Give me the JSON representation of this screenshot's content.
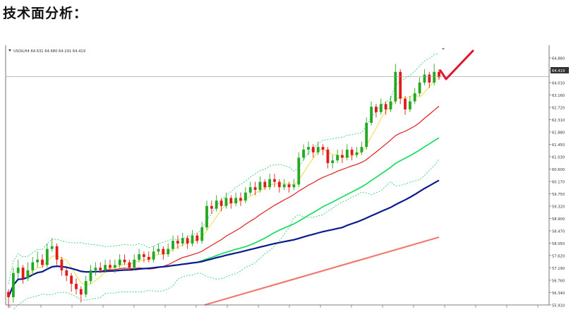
{
  "page": {
    "title": "技术面分析："
  },
  "chart_data": {
    "type": "candlestick",
    "symbol_info": "USOILH4  64.631 64.680 64.291 64.419",
    "current_price": "64.419",
    "ylim": [
      55.91,
      65.49
    ],
    "y_ticks": [
      "64.860",
      "64.419",
      "64.010",
      "63.160",
      "62.720",
      "62.310",
      "61.880",
      "61.450",
      "61.030",
      "60.600",
      "60.170",
      "59.750",
      "59.320",
      "58.900",
      "58.470",
      "58.050",
      "57.620",
      "57.190",
      "56.760",
      "56.340",
      "55.910"
    ],
    "grid": false,
    "colors": {
      "up": "#22a822",
      "down": "#e01b1b",
      "ma_fast": "#f0dc46",
      "ma_red": "#e01b1b",
      "ma_green": "#22dd66",
      "ma_navy": "#0b1a8c",
      "ma_salmon": "#f07a6e",
      "bands": "#22cc66",
      "arrow": "#e0182f"
    },
    "candles": [
      [
        56.4,
        56.2,
        56.5,
        55.8
      ],
      [
        56.2,
        57.1,
        57.3,
        56.0
      ],
      [
        57.1,
        57.3,
        57.6,
        56.9
      ],
      [
        57.3,
        56.9,
        57.4,
        56.7
      ],
      [
        56.9,
        57.2,
        57.5,
        56.8
      ],
      [
        57.2,
        57.5,
        57.7,
        57.0
      ],
      [
        57.5,
        57.6,
        57.9,
        57.3
      ],
      [
        57.6,
        57.4,
        57.8,
        57.3
      ],
      [
        57.4,
        58.0,
        58.2,
        57.3
      ],
      [
        58.0,
        58.1,
        58.4,
        57.9
      ],
      [
        58.1,
        57.6,
        58.2,
        57.4
      ],
      [
        57.6,
        57.2,
        57.7,
        57.0
      ],
      [
        57.2,
        57.0,
        57.3,
        56.8
      ],
      [
        57.0,
        56.7,
        57.1,
        56.4
      ],
      [
        56.7,
        56.5,
        56.9,
        56.3
      ],
      [
        56.5,
        56.3,
        56.6,
        56.0
      ],
      [
        56.3,
        56.8,
        57.0,
        56.2
      ],
      [
        56.8,
        57.2,
        57.4,
        56.7
      ],
      [
        57.2,
        57.3,
        57.5,
        57.0
      ],
      [
        57.3,
        57.2,
        57.5,
        57.1
      ],
      [
        57.2,
        57.4,
        57.6,
        57.1
      ],
      [
        57.4,
        57.3,
        57.6,
        57.2
      ],
      [
        57.3,
        57.4,
        57.6,
        57.1
      ],
      [
        57.4,
        57.6,
        57.8,
        57.3
      ],
      [
        57.6,
        57.5,
        57.8,
        57.4
      ],
      [
        57.5,
        57.3,
        57.6,
        57.2
      ],
      [
        57.3,
        57.6,
        57.8,
        57.2
      ],
      [
        57.6,
        57.8,
        58.0,
        57.5
      ],
      [
        57.8,
        57.7,
        57.9,
        57.5
      ],
      [
        57.7,
        57.6,
        57.9,
        57.5
      ],
      [
        57.6,
        57.9,
        58.1,
        57.5
      ],
      [
        57.9,
        58.0,
        58.2,
        57.8
      ],
      [
        58.0,
        57.8,
        58.1,
        57.6
      ],
      [
        57.8,
        58.0,
        58.2,
        57.7
      ],
      [
        58.0,
        58.3,
        58.5,
        57.9
      ],
      [
        58.3,
        58.2,
        58.5,
        58.0
      ],
      [
        58.2,
        58.4,
        58.6,
        58.1
      ],
      [
        58.4,
        58.2,
        58.5,
        58.0
      ],
      [
        58.2,
        58.5,
        58.7,
        58.1
      ],
      [
        58.5,
        58.3,
        58.6,
        58.2
      ],
      [
        58.3,
        58.8,
        59.0,
        58.2
      ],
      [
        58.8,
        59.6,
        59.8,
        58.7
      ],
      [
        59.6,
        59.5,
        59.8,
        59.3
      ],
      [
        59.5,
        59.8,
        60.0,
        59.4
      ],
      [
        59.8,
        59.6,
        59.9,
        59.4
      ],
      [
        59.6,
        59.9,
        60.1,
        59.5
      ],
      [
        59.9,
        59.7,
        60.0,
        59.5
      ],
      [
        59.7,
        59.9,
        60.1,
        59.6
      ],
      [
        59.9,
        59.8,
        60.1,
        59.6
      ],
      [
        59.8,
        60.1,
        60.3,
        59.7
      ],
      [
        60.1,
        60.3,
        60.5,
        60.0
      ],
      [
        60.3,
        60.2,
        60.5,
        60.0
      ],
      [
        60.2,
        60.5,
        60.7,
        60.1
      ],
      [
        60.5,
        60.3,
        60.6,
        60.2
      ],
      [
        60.3,
        60.6,
        60.8,
        60.2
      ],
      [
        60.6,
        60.5,
        60.8,
        60.3
      ],
      [
        60.5,
        60.3,
        60.6,
        60.1
      ],
      [
        60.3,
        60.4,
        60.6,
        60.2
      ],
      [
        60.4,
        60.3,
        60.5,
        60.1
      ],
      [
        60.3,
        60.4,
        60.6,
        60.2
      ],
      [
        60.4,
        61.4,
        61.6,
        60.3
      ],
      [
        61.4,
        61.7,
        61.9,
        61.3
      ],
      [
        61.7,
        61.8,
        62.0,
        61.5
      ],
      [
        61.8,
        61.6,
        61.9,
        61.4
      ],
      [
        61.6,
        61.8,
        62.0,
        61.5
      ],
      [
        61.8,
        61.7,
        61.9,
        61.5
      ],
      [
        61.7,
        61.2,
        61.8,
        61.0
      ],
      [
        61.2,
        61.3,
        61.5,
        61.0
      ],
      [
        61.3,
        61.5,
        61.7,
        61.2
      ],
      [
        61.5,
        61.4,
        61.7,
        61.2
      ],
      [
        61.4,
        61.7,
        61.9,
        61.3
      ],
      [
        61.7,
        61.5,
        61.8,
        61.3
      ],
      [
        61.5,
        61.6,
        61.8,
        61.4
      ],
      [
        61.6,
        61.8,
        62.0,
        61.5
      ],
      [
        61.8,
        62.7,
        62.9,
        61.7
      ],
      [
        62.7,
        63.3,
        63.5,
        62.6
      ],
      [
        63.3,
        63.1,
        63.4,
        62.9
      ],
      [
        63.1,
        63.4,
        63.6,
        63.0
      ],
      [
        63.4,
        63.2,
        63.5,
        63.0
      ],
      [
        63.2,
        63.5,
        63.7,
        63.1
      ],
      [
        63.5,
        64.6,
        64.9,
        63.4
      ],
      [
        64.6,
        63.6,
        64.7,
        63.4
      ],
      [
        63.6,
        63.2,
        63.7,
        63.0
      ],
      [
        63.2,
        63.5,
        63.7,
        63.1
      ],
      [
        63.5,
        63.8,
        64.0,
        63.4
      ],
      [
        63.8,
        64.2,
        64.4,
        63.7
      ],
      [
        64.2,
        64.5,
        64.7,
        64.1
      ],
      [
        64.5,
        64.2,
        64.6,
        64.0
      ],
      [
        64.2,
        64.6,
        64.9,
        64.1
      ],
      [
        64.6,
        64.4,
        64.7,
        64.3
      ]
    ]
  }
}
